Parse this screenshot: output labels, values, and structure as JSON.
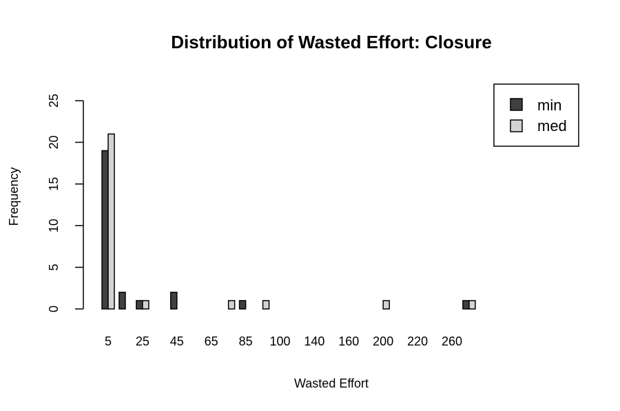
{
  "chart_data": {
    "type": "bar",
    "title": "Distribution of Wasted Effort: Closure",
    "xlabel": "Wasted Effort",
    "ylabel": "Frequency",
    "ylim": [
      0,
      25
    ],
    "yticks": [
      0,
      5,
      10,
      15,
      20,
      25
    ],
    "categories": [
      "5",
      "15",
      "25",
      "35",
      "45",
      "55",
      "65",
      "75",
      "85",
      "95",
      "100",
      "120",
      "140",
      "150",
      "160",
      "170",
      "200",
      "210",
      "220",
      "230",
      "260",
      "270"
    ],
    "category_labels_shown": [
      "5",
      "",
      "25",
      "",
      "45",
      "",
      "65",
      "",
      "85",
      "",
      "100",
      "",
      "140",
      "",
      "160",
      "",
      "200",
      "",
      "220",
      "",
      "260",
      ""
    ],
    "series": [
      {
        "name": "min",
        "color": "#404040",
        "values": [
          19,
          2,
          1,
          0,
          2,
          0,
          0,
          0,
          1,
          0,
          0,
          0,
          0,
          0,
          0,
          0,
          0,
          0,
          0,
          0,
          0,
          1
        ]
      },
      {
        "name": "med",
        "color": "#d3d3d3",
        "values": [
          21,
          0,
          1,
          0,
          0,
          0,
          0,
          1,
          0,
          1,
          0,
          0,
          0,
          0,
          0,
          0,
          1,
          0,
          0,
          0,
          0,
          1
        ]
      }
    ],
    "legend_position": "top-right",
    "grid": false
  }
}
